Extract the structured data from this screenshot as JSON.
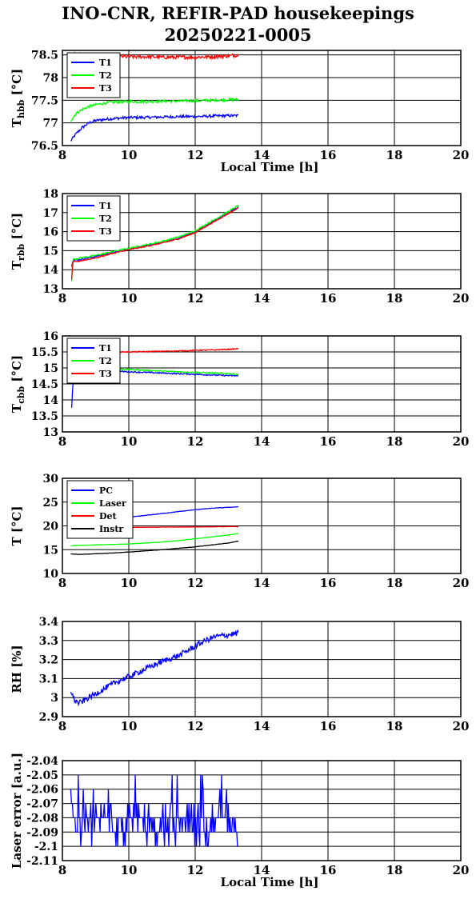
{
  "header": {
    "title_line1": "INO-CNR, REFIR-PAD housekeepings",
    "title_line2": "20250221-0005"
  },
  "colors": {
    "blue": "#0000ff",
    "green": "#00ff00",
    "red": "#ff0000",
    "black": "#000000"
  },
  "chart_data": [
    {
      "type": "line",
      "id": "hbb",
      "ylabel_main": "T",
      "ylabel_sub": "hbb",
      "ylabel_unit": "[°C]",
      "xlabel": "Local Time [h]",
      "xlim": [
        8,
        20
      ],
      "ylim": [
        76.5,
        78.6
      ],
      "xticks": [
        "8",
        "10",
        "12",
        "14",
        "16",
        "18",
        "20"
      ],
      "yticks": [
        76.5,
        77,
        77.5,
        78,
        78.5
      ],
      "ytick_labels": [
        "76.5",
        "77",
        "77.5",
        "78",
        "78.5"
      ],
      "grid": true,
      "legend": "top-left",
      "series": [
        {
          "name": "T1",
          "color": "#0000ff",
          "x": [
            8.25,
            8.4,
            8.6,
            8.8,
            9.0,
            9.3,
            9.6,
            10.0,
            10.5,
            11.0,
            11.5,
            12.0,
            12.5,
            13.0,
            13.3
          ],
          "y": [
            76.6,
            76.75,
            76.9,
            77.0,
            77.05,
            77.08,
            77.1,
            77.12,
            77.12,
            77.13,
            77.14,
            77.14,
            77.15,
            77.16,
            77.16
          ],
          "noise": 0.03
        },
        {
          "name": "T2",
          "color": "#00ff00",
          "x": [
            8.25,
            8.4,
            8.6,
            8.8,
            9.0,
            9.3,
            9.6,
            10.0,
            10.5,
            11.0,
            11.5,
            12.0,
            12.5,
            13.0,
            13.3
          ],
          "y": [
            77.05,
            77.2,
            77.3,
            77.36,
            77.4,
            77.44,
            77.46,
            77.47,
            77.47,
            77.48,
            77.48,
            77.49,
            77.5,
            77.51,
            77.52
          ],
          "noise": 0.03
        },
        {
          "name": "T3",
          "color": "#ff0000",
          "x": [
            8.25,
            8.6,
            9.0,
            9.5,
            10.0,
            10.5,
            11.0,
            11.5,
            12.0,
            12.5,
            13.0,
            13.3
          ],
          "y": [
            78.52,
            78.5,
            78.48,
            78.47,
            78.46,
            78.46,
            78.45,
            78.45,
            78.45,
            78.46,
            78.48,
            78.5
          ],
          "noise": 0.04
        }
      ]
    },
    {
      "type": "line",
      "id": "rbb",
      "ylabel_main": "T",
      "ylabel_sub": "rbb",
      "ylabel_unit": "[°C]",
      "xlabel": "",
      "xlim": [
        8,
        20
      ],
      "ylim": [
        13,
        18
      ],
      "xticks": [
        "8",
        "10",
        "12",
        "14",
        "16",
        "18",
        "20"
      ],
      "yticks": [
        13,
        14,
        15,
        16,
        17,
        18
      ],
      "ytick_labels": [
        "13",
        "14",
        "15",
        "16",
        "17",
        "18"
      ],
      "grid": true,
      "legend": "top-left",
      "series": [
        {
          "name": "T1",
          "color": "#0000ff",
          "x": [
            8.28,
            8.32,
            8.5,
            9.0,
            9.5,
            10.0,
            10.5,
            11.0,
            11.5,
            12.0,
            12.5,
            13.0,
            13.3
          ],
          "y": [
            14.2,
            14.5,
            14.52,
            14.7,
            14.9,
            15.08,
            15.25,
            15.42,
            15.65,
            16.0,
            16.5,
            17.0,
            17.3
          ],
          "noise": 0.03
        },
        {
          "name": "T2",
          "color": "#00ff00",
          "x": [
            8.28,
            8.3,
            8.32,
            8.5,
            9.0,
            9.5,
            10.0,
            10.5,
            11.0,
            11.5,
            12.0,
            12.5,
            13.0,
            13.3
          ],
          "y": [
            13.4,
            14.0,
            14.55,
            14.6,
            14.75,
            14.95,
            15.12,
            15.3,
            15.48,
            15.72,
            16.05,
            16.55,
            17.05,
            17.38
          ],
          "noise": 0.04
        },
        {
          "name": "T3",
          "color": "#ff0000",
          "x": [
            8.28,
            8.3,
            8.32,
            8.5,
            9.0,
            9.5,
            10.0,
            10.5,
            11.0,
            11.5,
            12.0,
            12.5,
            13.0,
            13.3
          ],
          "y": [
            13.5,
            14.1,
            14.4,
            14.45,
            14.62,
            14.85,
            15.05,
            15.22,
            15.4,
            15.62,
            15.95,
            16.45,
            16.95,
            17.25
          ],
          "noise": 0.03
        }
      ]
    },
    {
      "type": "line",
      "id": "cbb",
      "ylabel_main": "T",
      "ylabel_sub": "cbb",
      "ylabel_unit": "[°C]",
      "xlabel": "",
      "xlim": [
        8,
        20
      ],
      "ylim": [
        13,
        16
      ],
      "xticks": [
        "8",
        "10",
        "12",
        "14",
        "16",
        "18",
        "20"
      ],
      "yticks": [
        13,
        13.5,
        14,
        14.5,
        15,
        15.5,
        16
      ],
      "ytick_labels": [
        "13",
        "13.5",
        "14",
        "14.5",
        "15",
        "15.5",
        "16"
      ],
      "grid": true,
      "legend": "top-left",
      "series": [
        {
          "name": "T1",
          "color": "#0000ff",
          "x": [
            8.28,
            8.3,
            8.32,
            8.36,
            8.5,
            9.0,
            9.5,
            10.0,
            10.5,
            11.0,
            11.5,
            12.0,
            12.5,
            13.0,
            13.3
          ],
          "y": [
            13.75,
            14.2,
            14.5,
            14.7,
            14.82,
            14.88,
            14.9,
            14.88,
            14.86,
            14.84,
            14.82,
            14.8,
            14.78,
            14.76,
            14.75
          ],
          "noise": 0.02
        },
        {
          "name": "T2",
          "color": "#00ff00",
          "x": [
            8.5,
            9.0,
            9.5,
            10.0,
            10.5,
            11.0,
            11.5,
            12.0,
            12.5,
            13.0,
            13.3
          ],
          "y": [
            14.9,
            14.95,
            14.96,
            14.95,
            14.93,
            14.9,
            14.88,
            14.86,
            14.84,
            14.82,
            14.8
          ],
          "noise": 0.02
        },
        {
          "name": "T3",
          "color": "#ff0000",
          "x": [
            8.6,
            9.0,
            9.5,
            10.0,
            10.5,
            11.0,
            11.5,
            12.0,
            12.5,
            13.0,
            13.3
          ],
          "y": [
            15.55,
            15.52,
            15.5,
            15.5,
            15.51,
            15.52,
            15.53,
            15.55,
            15.56,
            15.58,
            15.6
          ],
          "noise": 0.015
        }
      ]
    },
    {
      "type": "line",
      "id": "temps",
      "ylabel_main": "T [°C]",
      "ylabel_sub": "",
      "ylabel_unit": "",
      "xlabel": "",
      "xlim": [
        8,
        20
      ],
      "ylim": [
        10,
        30
      ],
      "xticks": [
        "8",
        "10",
        "12",
        "14",
        "16",
        "18",
        "20"
      ],
      "yticks": [
        10,
        15,
        20,
        25,
        30
      ],
      "ytick_labels": [
        "10",
        "15",
        "20",
        "25",
        "30"
      ],
      "grid": true,
      "legend": "top-left",
      "series": [
        {
          "name": "PC",
          "color": "#0000ff",
          "x": [
            8.5,
            9.0,
            9.5,
            10.0,
            10.5,
            11.0,
            11.5,
            12.0,
            12.5,
            13.0,
            13.3
          ],
          "y": [
            21.0,
            21.2,
            21.5,
            21.8,
            22.2,
            22.6,
            23.0,
            23.4,
            23.7,
            23.9,
            24.0
          ],
          "noise": 0.05
        },
        {
          "name": "Laser",
          "color": "#00ff00",
          "x": [
            8.25,
            8.5,
            9.0,
            9.5,
            10.0,
            10.5,
            11.0,
            11.5,
            12.0,
            12.5,
            13.0,
            13.3
          ],
          "y": [
            15.8,
            15.9,
            16.0,
            16.1,
            16.2,
            16.4,
            16.6,
            16.9,
            17.3,
            17.7,
            18.1,
            18.4
          ],
          "noise": 0.03
        },
        {
          "name": "Det",
          "color": "#ff0000",
          "x": [
            8.6,
            9.0,
            9.5,
            10.0,
            10.5,
            11.0,
            11.5,
            12.0,
            12.5,
            13.0,
            13.3
          ],
          "y": [
            19.6,
            19.6,
            19.65,
            19.7,
            19.7,
            19.75,
            19.75,
            19.8,
            19.8,
            19.85,
            19.85
          ],
          "noise": 0.04
        },
        {
          "name": "Instr",
          "color": "#000000",
          "x": [
            8.25,
            8.5,
            9.0,
            9.5,
            10.0,
            10.5,
            11.0,
            11.5,
            12.0,
            12.5,
            13.0,
            13.3
          ],
          "y": [
            14.1,
            14.0,
            14.15,
            14.3,
            14.5,
            14.75,
            15.0,
            15.3,
            15.6,
            16.0,
            16.4,
            16.8
          ],
          "noise": 0.03
        }
      ]
    },
    {
      "type": "line",
      "id": "rh",
      "ylabel_main": "RH [%]",
      "ylabel_sub": "",
      "ylabel_unit": "",
      "xlabel": "",
      "xlim": [
        8,
        20
      ],
      "ylim": [
        2.9,
        3.4
      ],
      "xticks": [
        "8",
        "10",
        "12",
        "14",
        "16",
        "18",
        "20"
      ],
      "yticks": [
        2.9,
        3.0,
        3.1,
        3.2,
        3.3,
        3.4
      ],
      "ytick_labels": [
        "2.9",
        "3",
        "3.1",
        "3.2",
        "3.3",
        "3.4"
      ],
      "grid": true,
      "legend": "none",
      "series": [
        {
          "color": "#0000ff",
          "x": [
            8.25,
            8.35,
            8.5,
            8.7,
            9.0,
            9.3,
            9.6,
            10.0,
            10.5,
            11.0,
            11.5,
            12.0,
            12.3,
            12.6,
            13.0,
            13.3
          ],
          "y": [
            3.04,
            2.99,
            2.97,
            2.99,
            3.02,
            3.05,
            3.08,
            3.11,
            3.15,
            3.19,
            3.22,
            3.27,
            3.3,
            3.32,
            3.33,
            3.34
          ],
          "noise": 0.015
        }
      ]
    },
    {
      "type": "line",
      "id": "laser",
      "ylabel_main": "Laser error [a.u.]",
      "ylabel_sub": "",
      "ylabel_unit": "",
      "xlabel": "Local Time [h]",
      "xlim": [
        8,
        20
      ],
      "ylim": [
        -2.11,
        -2.04
      ],
      "xticks": [
        "8",
        "10",
        "12",
        "14",
        "16",
        "18",
        "20"
      ],
      "yticks": [
        -2.11,
        -2.1,
        -2.09,
        -2.08,
        -2.07,
        -2.06,
        -2.05,
        -2.04
      ],
      "ytick_labels": [
        "-2.11",
        "-2.1",
        "-2.09",
        "-2.08",
        "-2.07",
        "-2.06",
        "-2.05",
        "-2.04"
      ],
      "grid": true,
      "legend": "none",
      "series": [
        {
          "color": "#0000ff",
          "x": [
            8.25,
            13.3
          ],
          "y": [
            -2.08,
            -2.08
          ],
          "quantized": true,
          "step": 0.01,
          "levels": [
            -2.07,
            -2.08,
            -2.09,
            -2.08,
            -2.1,
            -2.07,
            -2.08,
            -2.09,
            -2.08,
            -2.06,
            -2.07,
            -2.08,
            -2.1,
            -2.09,
            -2.08,
            -2.07,
            -2.08,
            -2.05,
            -2.09,
            -2.08
          ]
        }
      ]
    }
  ]
}
